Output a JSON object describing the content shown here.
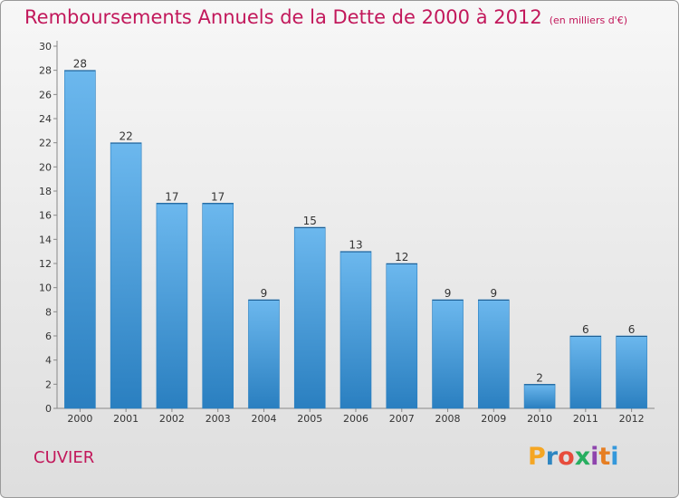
{
  "page": {
    "title": "Remboursements Annuels de la Dette de 2000 à 2012",
    "subtitle": "(en milliers d'€)",
    "commune": "CUVIER",
    "logo_text": "Proxiti"
  },
  "colors": {
    "title": "#c2185b",
    "bar_top": "#6cb8ee",
    "bar_bottom": "#2a7fc0",
    "logo": [
      "#f5a623",
      "#2e86c1",
      "#e74c3c",
      "#27ae60",
      "#8e44ad",
      "#e67e22",
      "#3498db"
    ]
  },
  "chart_data": {
    "type": "bar",
    "title": "Remboursements Annuels de la Dette de 2000 à 2012",
    "subtitle": "(en milliers d'€)",
    "categories": [
      "2000",
      "2001",
      "2002",
      "2003",
      "2004",
      "2005",
      "2006",
      "2007",
      "2008",
      "2009",
      "2010",
      "2011",
      "2012"
    ],
    "values": [
      28,
      22,
      17,
      17,
      9,
      15,
      13,
      12,
      9,
      9,
      2,
      6,
      6
    ],
    "ylim": [
      0,
      30
    ],
    "yticks": [
      0,
      2,
      4,
      6,
      8,
      10,
      12,
      14,
      16,
      18,
      20,
      22,
      24,
      26,
      28,
      30
    ],
    "grid": false,
    "legend": "none"
  }
}
